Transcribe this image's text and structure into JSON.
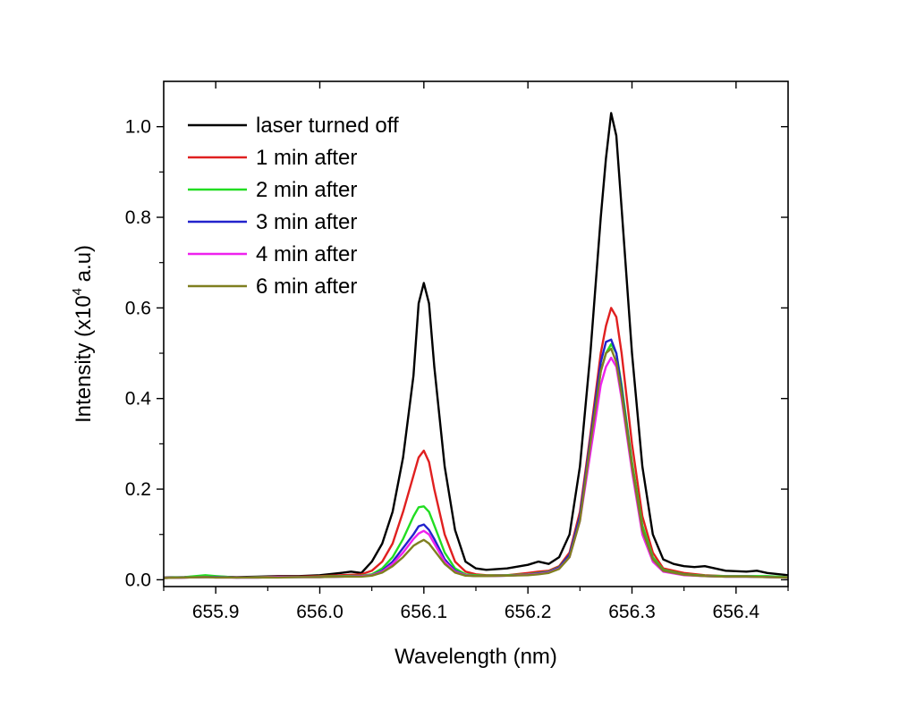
{
  "chart_data": {
    "type": "line",
    "xlabel": "Wavelength (nm)",
    "ylabel": {
      "prefix": "Intensity (x10",
      "exponent": "4",
      "suffix": " a.u)"
    },
    "xlim": [
      655.85,
      656.45
    ],
    "ylim": [
      -0.015,
      1.1
    ],
    "xticks": [
      655.9,
      656.0,
      656.1,
      656.2,
      656.3,
      656.4
    ],
    "xtick_labels": [
      "655.9",
      "656.0",
      "656.1",
      "656.2",
      "656.3",
      "656.4"
    ],
    "yticks": [
      0.0,
      0.2,
      0.4,
      0.6,
      0.8,
      1.0
    ],
    "ytick_labels": [
      "0.0",
      "0.2",
      "0.4",
      "0.6",
      "0.8",
      "1.0"
    ],
    "legend_position": "top-left",
    "grid": false,
    "series": [
      {
        "name": "laser turned off",
        "color": "#000000",
        "x": [
          655.85,
          655.87,
          655.89,
          655.9,
          655.92,
          655.94,
          655.96,
          655.98,
          656.0,
          656.02,
          656.03,
          656.04,
          656.05,
          656.06,
          656.07,
          656.08,
          656.09,
          656.095,
          656.1,
          656.105,
          656.11,
          656.12,
          656.13,
          656.14,
          656.15,
          656.16,
          656.18,
          656.2,
          656.21,
          656.22,
          656.23,
          656.24,
          656.25,
          656.26,
          656.27,
          656.275,
          656.28,
          656.285,
          656.29,
          656.3,
          656.31,
          656.32,
          656.33,
          656.34,
          656.35,
          656.36,
          656.37,
          656.39,
          656.41,
          656.42,
          656.43,
          656.45
        ],
        "y": [
          0.005,
          0.006,
          0.008,
          0.007,
          0.006,
          0.007,
          0.008,
          0.008,
          0.01,
          0.015,
          0.018,
          0.015,
          0.04,
          0.08,
          0.15,
          0.27,
          0.45,
          0.61,
          0.655,
          0.61,
          0.47,
          0.25,
          0.11,
          0.04,
          0.025,
          0.022,
          0.025,
          0.033,
          0.04,
          0.035,
          0.05,
          0.1,
          0.25,
          0.5,
          0.8,
          0.93,
          1.03,
          0.98,
          0.82,
          0.5,
          0.25,
          0.1,
          0.045,
          0.035,
          0.03,
          0.028,
          0.03,
          0.02,
          0.018,
          0.02,
          0.015,
          0.01
        ]
      },
      {
        "name": "1 min after",
        "color": "#e02020",
        "x": [
          655.85,
          655.87,
          655.89,
          655.9,
          655.92,
          655.94,
          655.96,
          655.98,
          656.0,
          656.02,
          656.04,
          656.05,
          656.06,
          656.07,
          656.08,
          656.09,
          656.095,
          656.1,
          656.105,
          656.11,
          656.12,
          656.13,
          656.14,
          656.15,
          656.16,
          656.18,
          656.2,
          656.21,
          656.22,
          656.23,
          656.24,
          656.25,
          656.26,
          656.27,
          656.275,
          656.28,
          656.285,
          656.29,
          656.3,
          656.31,
          656.32,
          656.33,
          656.35,
          656.37,
          656.39,
          656.41,
          656.43,
          656.45
        ],
        "y": [
          0.004,
          0.005,
          0.006,
          0.006,
          0.005,
          0.006,
          0.007,
          0.007,
          0.008,
          0.01,
          0.012,
          0.02,
          0.04,
          0.08,
          0.15,
          0.23,
          0.27,
          0.285,
          0.26,
          0.2,
          0.1,
          0.04,
          0.018,
          0.012,
          0.01,
          0.01,
          0.015,
          0.018,
          0.02,
          0.03,
          0.06,
          0.15,
          0.32,
          0.5,
          0.56,
          0.6,
          0.58,
          0.5,
          0.3,
          0.14,
          0.06,
          0.025,
          0.015,
          0.01,
          0.008,
          0.008,
          0.007,
          0.006
        ]
      },
      {
        "name": "2 min after",
        "color": "#22dd22",
        "x": [
          655.85,
          655.87,
          655.89,
          655.9,
          655.92,
          655.94,
          655.96,
          655.98,
          656.0,
          656.02,
          656.04,
          656.05,
          656.06,
          656.07,
          656.08,
          656.09,
          656.095,
          656.1,
          656.105,
          656.11,
          656.12,
          656.13,
          656.14,
          656.15,
          656.16,
          656.18,
          656.2,
          656.21,
          656.22,
          656.23,
          656.24,
          656.25,
          656.26,
          656.27,
          656.275,
          656.28,
          656.285,
          656.29,
          656.3,
          656.31,
          656.32,
          656.33,
          656.35,
          656.37,
          656.39,
          656.41,
          656.43,
          656.45
        ],
        "y": [
          0.004,
          0.006,
          0.01,
          0.008,
          0.005,
          0.006,
          0.006,
          0.006,
          0.007,
          0.008,
          0.009,
          0.012,
          0.025,
          0.05,
          0.09,
          0.14,
          0.16,
          0.162,
          0.15,
          0.12,
          0.06,
          0.025,
          0.012,
          0.01,
          0.009,
          0.01,
          0.012,
          0.015,
          0.018,
          0.028,
          0.055,
          0.14,
          0.3,
          0.46,
          0.5,
          0.52,
          0.5,
          0.43,
          0.26,
          0.12,
          0.05,
          0.022,
          0.012,
          0.009,
          0.008,
          0.008,
          0.008,
          0.006
        ]
      },
      {
        "name": "3 min after",
        "color": "#2222cc",
        "x": [
          655.85,
          655.87,
          655.89,
          655.9,
          655.92,
          655.94,
          655.96,
          655.98,
          656.0,
          656.02,
          656.04,
          656.05,
          656.06,
          656.07,
          656.08,
          656.09,
          656.095,
          656.1,
          656.105,
          656.11,
          656.12,
          656.13,
          656.14,
          656.15,
          656.16,
          656.18,
          656.2,
          656.21,
          656.22,
          656.23,
          656.24,
          656.25,
          656.26,
          656.27,
          656.275,
          656.28,
          656.285,
          656.29,
          656.3,
          656.31,
          656.32,
          656.33,
          656.35,
          656.37,
          656.39,
          656.41,
          656.43,
          656.45
        ],
        "y": [
          0.004,
          0.005,
          0.006,
          0.006,
          0.005,
          0.005,
          0.006,
          0.006,
          0.006,
          0.007,
          0.008,
          0.01,
          0.02,
          0.04,
          0.07,
          0.1,
          0.118,
          0.122,
          0.11,
          0.09,
          0.045,
          0.02,
          0.01,
          0.008,
          0.008,
          0.009,
          0.011,
          0.014,
          0.017,
          0.027,
          0.055,
          0.14,
          0.31,
          0.48,
          0.525,
          0.53,
          0.5,
          0.42,
          0.25,
          0.11,
          0.045,
          0.02,
          0.011,
          0.008,
          0.007,
          0.007,
          0.006,
          0.005
        ]
      },
      {
        "name": "4 min after",
        "color": "#ee22ee",
        "x": [
          655.85,
          655.87,
          655.89,
          655.9,
          655.92,
          655.94,
          655.96,
          655.98,
          656.0,
          656.02,
          656.04,
          656.05,
          656.06,
          656.07,
          656.08,
          656.09,
          656.095,
          656.1,
          656.105,
          656.11,
          656.12,
          656.13,
          656.14,
          656.15,
          656.16,
          656.18,
          656.2,
          656.21,
          656.22,
          656.23,
          656.24,
          656.25,
          656.26,
          656.27,
          656.275,
          656.28,
          656.285,
          656.29,
          656.3,
          656.31,
          656.32,
          656.33,
          656.35,
          656.37,
          656.39,
          656.41,
          656.43,
          656.45
        ],
        "y": [
          0.004,
          0.005,
          0.006,
          0.005,
          0.005,
          0.005,
          0.006,
          0.006,
          0.006,
          0.007,
          0.008,
          0.01,
          0.018,
          0.035,
          0.06,
          0.09,
          0.102,
          0.108,
          0.1,
          0.08,
          0.04,
          0.018,
          0.01,
          0.008,
          0.008,
          0.009,
          0.011,
          0.013,
          0.016,
          0.025,
          0.05,
          0.13,
          0.28,
          0.43,
          0.47,
          0.49,
          0.47,
          0.4,
          0.24,
          0.1,
          0.04,
          0.018,
          0.01,
          0.008,
          0.007,
          0.007,
          0.006,
          0.005
        ]
      },
      {
        "name": "6 min after",
        "color": "#7f7f20",
        "x": [
          655.85,
          655.87,
          655.89,
          655.9,
          655.92,
          655.94,
          655.96,
          655.98,
          656.0,
          656.02,
          656.04,
          656.05,
          656.06,
          656.07,
          656.08,
          656.09,
          656.095,
          656.1,
          656.105,
          656.11,
          656.12,
          656.13,
          656.14,
          656.15,
          656.16,
          656.18,
          656.2,
          656.21,
          656.22,
          656.23,
          656.24,
          656.25,
          656.26,
          656.27,
          656.275,
          656.28,
          656.285,
          656.29,
          656.3,
          656.31,
          656.32,
          656.33,
          656.35,
          656.37,
          656.39,
          656.41,
          656.43,
          656.45
        ],
        "y": [
          0.004,
          0.005,
          0.006,
          0.005,
          0.005,
          0.005,
          0.005,
          0.006,
          0.006,
          0.007,
          0.007,
          0.009,
          0.016,
          0.03,
          0.05,
          0.075,
          0.082,
          0.088,
          0.08,
          0.065,
          0.035,
          0.016,
          0.009,
          0.008,
          0.008,
          0.009,
          0.01,
          0.012,
          0.015,
          0.024,
          0.05,
          0.13,
          0.3,
          0.46,
          0.5,
          0.51,
          0.48,
          0.41,
          0.25,
          0.11,
          0.045,
          0.02,
          0.011,
          0.008,
          0.007,
          0.007,
          0.006,
          0.005
        ]
      }
    ]
  }
}
